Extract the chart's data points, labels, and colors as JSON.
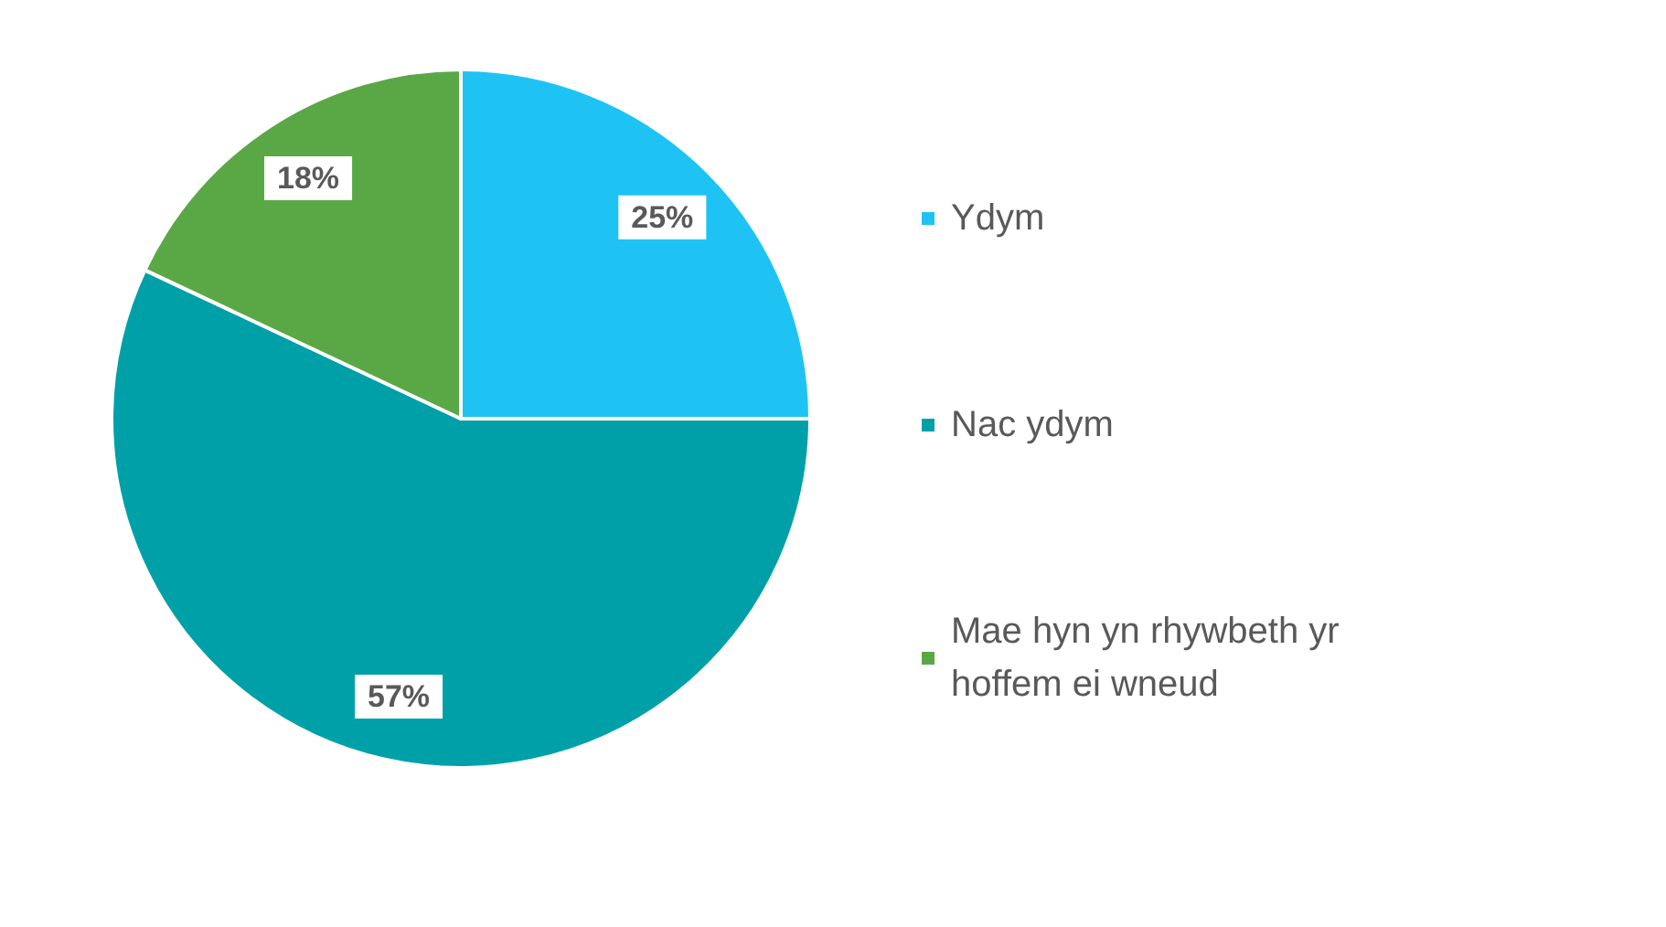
{
  "chart_data": {
    "type": "pie",
    "categories": [
      "Ydym",
      "Nac ydym",
      "Mae hyn yn rhywbeth yr hoffem ei wneud"
    ],
    "values": [
      25,
      57,
      18
    ],
    "colors": [
      "#1fc3f3",
      "#00a0a9",
      "#5aa845"
    ],
    "value_labels": [
      "25%",
      "57%",
      "18%"
    ],
    "legend": "right"
  }
}
